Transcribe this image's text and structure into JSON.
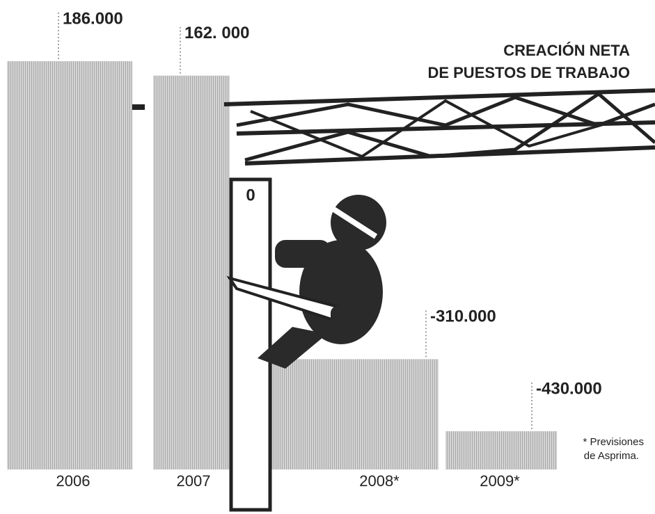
{
  "chart_data": {
    "type": "bar",
    "title": [
      "CREACIÓN NETA",
      "DE PUESTOS DE TRABAJO"
    ],
    "categories": [
      "2006",
      "2007",
      "2008*",
      "2009*"
    ],
    "values": [
      186000,
      162000,
      -310000,
      -430000
    ],
    "value_labels": [
      "186.000",
      "162. 000",
      "-310.000",
      "-430.000"
    ],
    "color": "#c8c8c8",
    "zero_label": "0",
    "note": [
      "* Previsiones",
      "de Asprima."
    ]
  }
}
